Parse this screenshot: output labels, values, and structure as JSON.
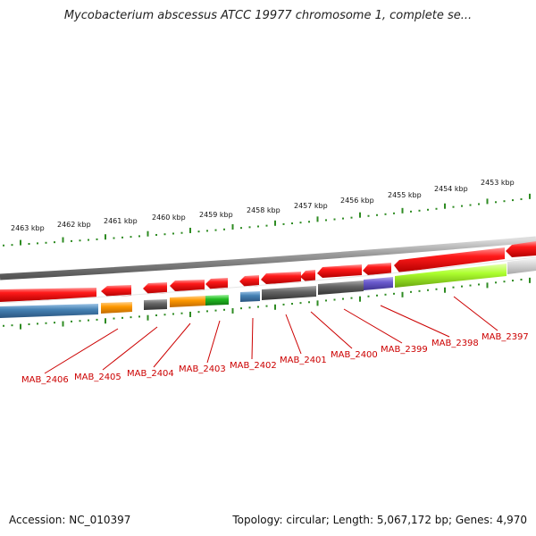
{
  "title": "Mycobacterium abscessus ATCC 19977 chromosome 1, complete se...",
  "accession": "Accession: NC_010397",
  "topology": "Topology: circular; Length: 5,067,172 bp; Genes: 4,970",
  "colors": {
    "tick": "#2e8b22",
    "gene_forward": "#ee1111",
    "gene_label": "#cc0000",
    "backbone": "#888888"
  },
  "kbp_labels": [
    "2463 kbp",
    "2462 kbp",
    "2461 kbp",
    "2460 kbp",
    "2459 kbp",
    "2458 kbp",
    "2457 kbp",
    "2456 kbp",
    "2455 kbp",
    "2454 kbp",
    "2453 kbp"
  ],
  "gene_labels": [
    "MAB_2406",
    "MAB_2405",
    "MAB_2404",
    "MAB_2403",
    "MAB_2402",
    "MAB_2401",
    "MAB_2400",
    "MAB_2399",
    "MAB_2398",
    "MAB_2397"
  ]
}
